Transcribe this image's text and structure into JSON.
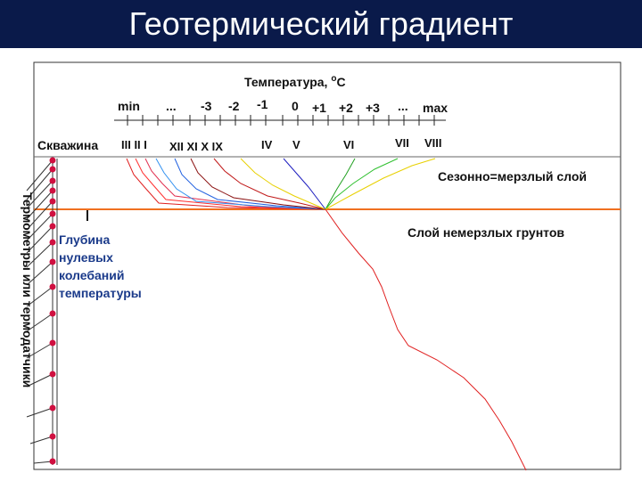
{
  "slide": {
    "title": "Геотермический градиент"
  },
  "axis": {
    "title": "Температура, ",
    "unit_sup": "o",
    "unit": "C",
    "ticks": [
      "min",
      "...",
      "-3",
      "-2",
      "-1",
      "0",
      "+1",
      "+2",
      "+3",
      "...",
      "max"
    ]
  },
  "well": {
    "label": "Скважина",
    "months_left": "III II I",
    "months_mid": "XII XI X IX",
    "months": [
      "IV",
      "V",
      "VI",
      "VII",
      "VIII"
    ],
    "sensors_label": "Термометры или термодатчики"
  },
  "layers": {
    "seasonal": "Сезонно=мерзлый слой",
    "unfrozen": "Слой немерзлых грунтов"
  },
  "depth_label": [
    "Глубина",
    "нулевых",
    "колебаний",
    "температуры"
  ],
  "colors": {
    "title_bar": "#0a1a4a",
    "boundary": "#f07020",
    "deep_curve": "#e02020",
    "sensor": "#d01040"
  }
}
